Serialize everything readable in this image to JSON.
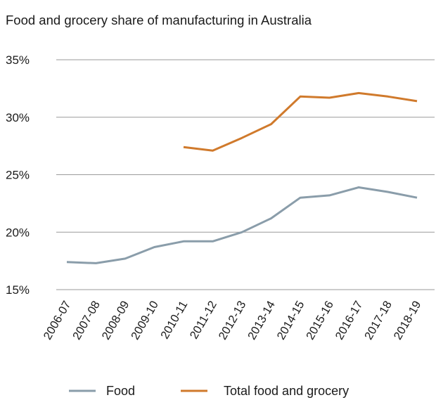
{
  "chart_data": {
    "type": "line",
    "title": "Food and grocery share of manufacturing in Australia",
    "xlabel": "",
    "ylabel": "",
    "categories": [
      "2006-07",
      "2007-08",
      "2008-09",
      "2009-10",
      "2010-11",
      "2011-12",
      "2012-13",
      "2013-14",
      "2014-15",
      "2015-16",
      "2016-17",
      "2017-18",
      "2018-19"
    ],
    "y_ticks": [
      "15%",
      "20%",
      "25%",
      "30%",
      "35%"
    ],
    "ylim": [
      15,
      35
    ],
    "grid": "horizontal",
    "legend_position": "bottom",
    "series": [
      {
        "name": "Food",
        "color": "#8a9daa",
        "values": [
          17.4,
          17.3,
          17.7,
          18.7,
          19.2,
          19.2,
          20.0,
          21.2,
          23.0,
          23.2,
          23.9,
          23.5,
          23.0
        ]
      },
      {
        "name": "Total food and grocery",
        "color": "#d07a2c",
        "values": [
          null,
          null,
          null,
          null,
          27.4,
          27.1,
          28.2,
          29.4,
          31.8,
          31.7,
          32.1,
          31.8,
          31.4
        ]
      }
    ]
  }
}
